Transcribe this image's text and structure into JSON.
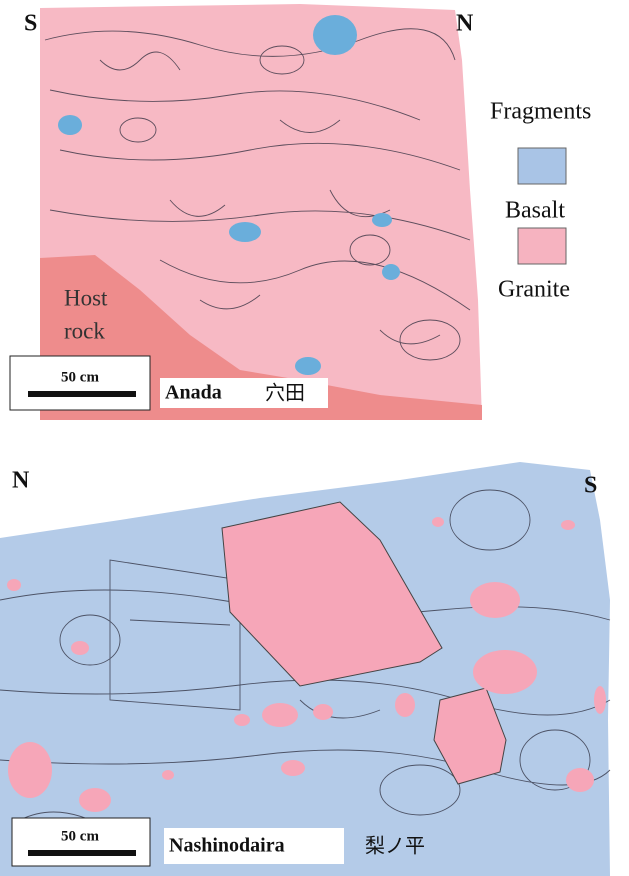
{
  "panels": [
    {
      "left_label": "S",
      "right_label": "N",
      "annotation": [
        "Host",
        "rock"
      ],
      "scale": "50 cm",
      "site": "Anada",
      "site_jp": "穴田"
    },
    {
      "left_label": "N",
      "right_label": "S",
      "scale": "50 cm",
      "site": "Nashinodaira",
      "site_jp": "梨ノ平"
    }
  ],
  "legend": {
    "title": "Fragments",
    "items": [
      {
        "label": "Basalt",
        "color": "#a9c4e6"
      },
      {
        "label": "Granite",
        "color": "#f6b3c0"
      }
    ]
  }
}
